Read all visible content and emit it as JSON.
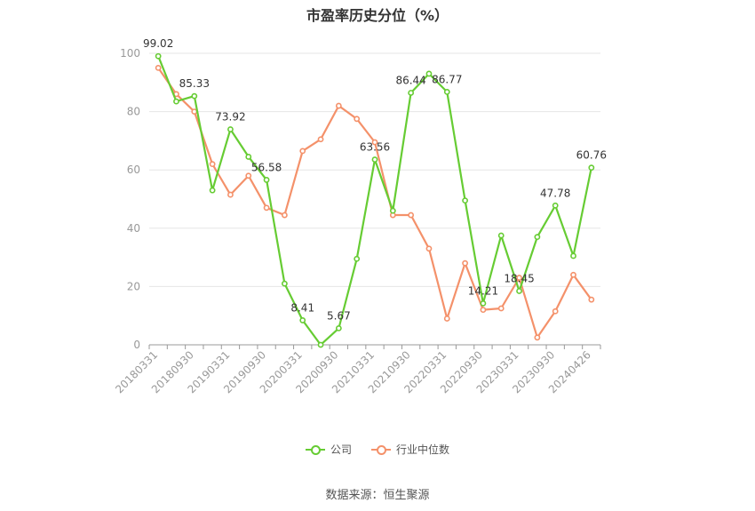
{
  "chart_data": {
    "type": "line",
    "title": "市盈率历史分位（%）",
    "ylim": [
      0,
      100
    ],
    "y_ticks": [
      "0",
      "20",
      "40",
      "60",
      "80",
      "100"
    ],
    "x_tick_labels": [
      "20180331",
      "20180930",
      "20190331",
      "20190930",
      "20200331",
      "20200930",
      "20210331",
      "20210930",
      "20220331",
      "20220930",
      "20230331",
      "20230930",
      "20240426"
    ],
    "grid": true,
    "legend_position": "bottom",
    "series": [
      {
        "name": "公司",
        "color": "#66cc33",
        "values": [
          99.02,
          83.5,
          85.33,
          53.0,
          73.92,
          64.5,
          56.58,
          21.0,
          8.41,
          0.0,
          5.67,
          29.5,
          63.56,
          46.0,
          86.44,
          93.0,
          86.77,
          49.5,
          14.21,
          37.5,
          18.45,
          37.0,
          47.78,
          30.5,
          60.76
        ],
        "labels": [
          "99.02",
          "",
          "85.33",
          "",
          "73.92",
          "",
          "56.58",
          "",
          "8.41",
          "",
          "5.67",
          "",
          "63.56",
          "",
          "86.44",
          "",
          "86.77",
          "",
          "14.21",
          "",
          "18.45",
          "",
          "47.78",
          "",
          "60.76"
        ]
      },
      {
        "name": "行业中位数",
        "color": "#f4916a",
        "values": [
          95.0,
          86.0,
          80.0,
          62.0,
          51.5,
          58.0,
          47.0,
          44.5,
          66.5,
          70.5,
          82.0,
          77.5,
          69.5,
          44.5,
          44.5,
          33.0,
          9.0,
          28.0,
          12.0,
          12.5,
          23.0,
          2.5,
          11.5,
          24.0,
          15.5
        ]
      }
    ]
  },
  "source": "数据来源：恒生聚源"
}
